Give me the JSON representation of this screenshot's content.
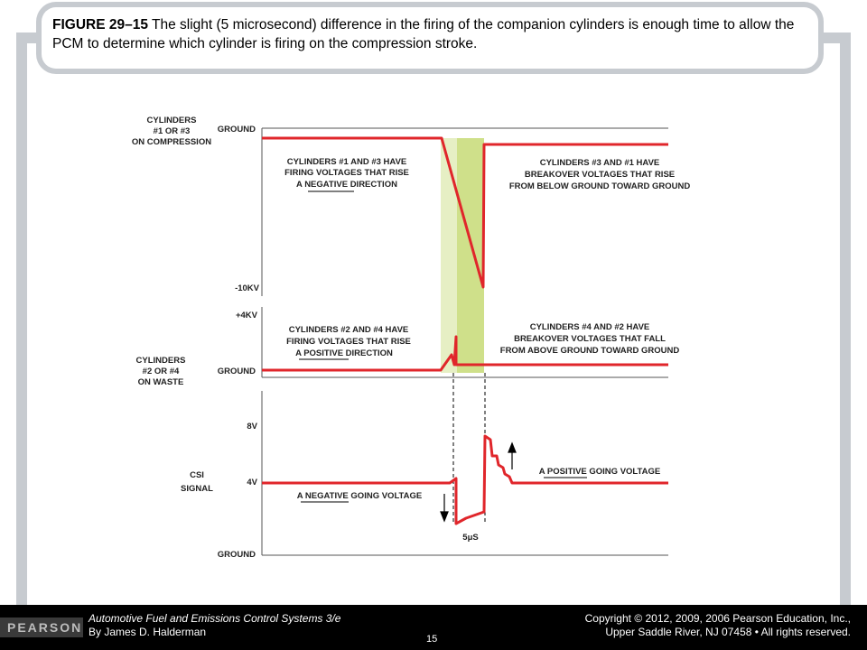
{
  "caption": {
    "figure_label": "FIGURE 29–15",
    "text": " The slight (5 microsecond) difference in the firing of the companion cylinders is enough time to allow the PCM to determine which cylinder is firing on the compression stroke."
  },
  "diagram": {
    "compression_panel": {
      "side_label": [
        "CYLINDERS",
        "#1 OR #3",
        "ON COMPRESSION"
      ],
      "axis_top": "GROUND",
      "axis_bottom": "-10KV",
      "note_left": [
        "CYLINDERS #1 AND #3 HAVE",
        "FIRING VOLTAGES THAT RISE",
        "A NEGATIVE DIRECTION"
      ],
      "note_right": [
        "CYLINDERS #3 AND #1 HAVE",
        "BREAKOVER VOLTAGES THAT RISE",
        "FROM BELOW GROUND TOWARD GROUND"
      ]
    },
    "waste_panel": {
      "side_label": [
        "CYLINDERS",
        "#2 OR #4",
        "ON WASTE"
      ],
      "axis_top": "+4KV",
      "axis_bottom": "GROUND",
      "note_left": [
        "CYLINDERS #2 AND #4 HAVE",
        "FIRING VOLTAGES THAT RISE",
        "A POSITIVE DIRECTION"
      ],
      "note_right": [
        "CYLINDERS #4 AND #2 HAVE",
        "BREAKOVER VOLTAGES THAT FALL",
        "FROM ABOVE GROUND TOWARD GROUND"
      ]
    },
    "csi_panel": {
      "side_label": [
        "CSI",
        "SIGNAL"
      ],
      "axis_top": "8V",
      "axis_mid": "4V",
      "axis_bottom": "GROUND",
      "note_left": "A NEGATIVE GOING VOLTAGE",
      "note_right": "A POSITIVE GOING VOLTAGE",
      "time_label": "5μS"
    },
    "colors": {
      "signal": "#e0262b",
      "highlight_light": "#e6efc4",
      "highlight_dark": "#cfe08a"
    }
  },
  "footer": {
    "publisher": "PEARSON",
    "book_title": "Automotive Fuel and Emissions Control Systems 3/e",
    "author": "By James D. Halderman",
    "copyright_line1": "Copyright © 2012, 2009, 2006 Pearson Education, Inc.,",
    "copyright_line2": "Upper Saddle River, NJ 07458 • All rights reserved.",
    "page_number": "15"
  }
}
